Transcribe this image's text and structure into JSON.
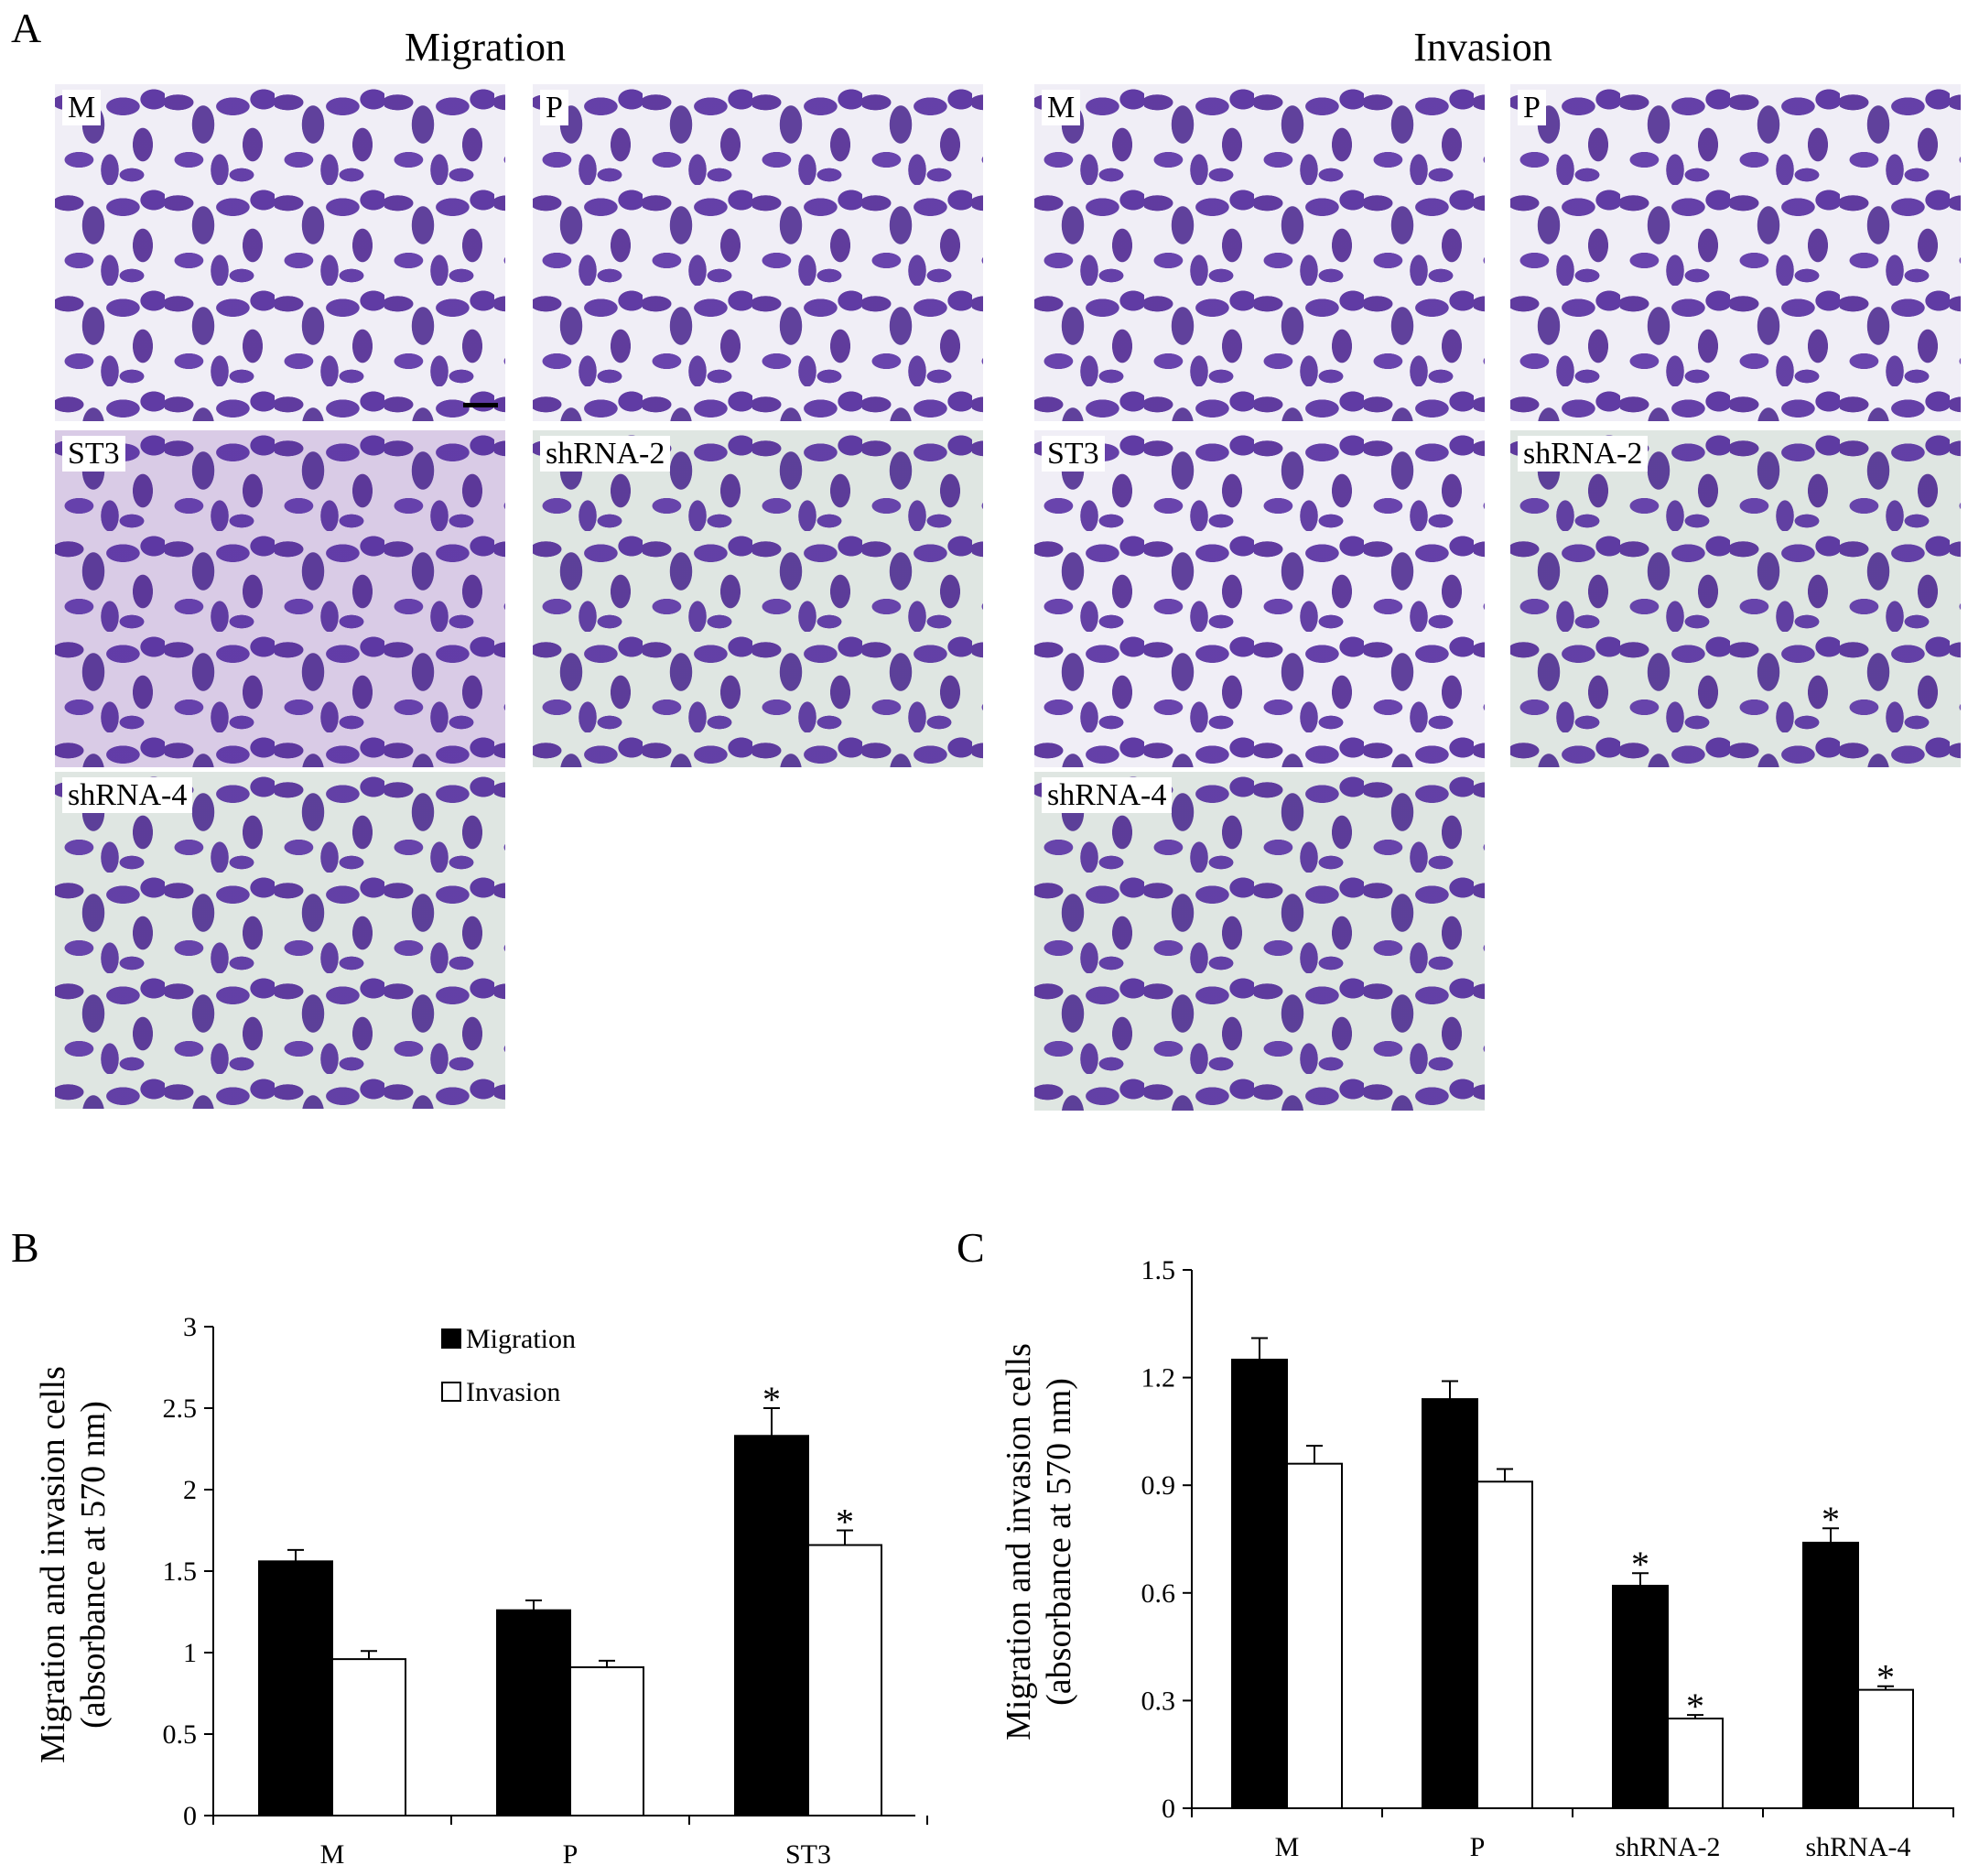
{
  "panel_a": {
    "letter": "A",
    "migration_title": "Migration",
    "invasion_title": "Invasion",
    "migration_images": [
      {
        "label": "M",
        "tone": "light"
      },
      {
        "label": "P",
        "tone": "light"
      },
      {
        "label": "ST3",
        "tone": "dense"
      },
      {
        "label": "shRNA-2",
        "tone": "pale"
      },
      {
        "label": "shRNA-4",
        "tone": "pale"
      }
    ],
    "invasion_images": [
      {
        "label": "M",
        "tone": "light"
      },
      {
        "label": "P",
        "tone": "light"
      },
      {
        "label": "ST3",
        "tone": "light"
      },
      {
        "label": "shRNA-2",
        "tone": "pale"
      },
      {
        "label": "shRNA-4",
        "tone": "pale"
      }
    ]
  },
  "chart_data": [
    {
      "panel": "B",
      "type": "bar",
      "ylabel_line1": "Migration and invasion cells",
      "ylabel_line2": "(absorbance at 570 nm)",
      "categories": [
        "M",
        "P",
        "ST3"
      ],
      "ylim": [
        0,
        3
      ],
      "yticks": [
        "0",
        "0.5",
        "1",
        "1.5",
        "2",
        "2.5",
        "3"
      ],
      "ytick_values": [
        0,
        0.5,
        1,
        1.5,
        2,
        2.5,
        3
      ],
      "series": [
        {
          "name": "Migration",
          "color": "#000000",
          "values": [
            1.56,
            1.26,
            2.33
          ],
          "errors": [
            0.07,
            0.06,
            0.17
          ],
          "sig": [
            "",
            "",
            "*"
          ]
        },
        {
          "name": "Invasion",
          "color": "#ffffff",
          "values": [
            0.96,
            0.91,
            1.66
          ],
          "errors": [
            0.05,
            0.04,
            0.09
          ],
          "sig": [
            "",
            "",
            "*"
          ]
        }
      ],
      "legend": "inside-top-center"
    },
    {
      "panel": "C",
      "type": "bar",
      "ylabel_line1": "Migration and invasion cells",
      "ylabel_line2": "(absorbance at 570 nm)",
      "categories": [
        "M",
        "P",
        "shRNA-2",
        "shRNA-4"
      ],
      "ylim": [
        0,
        1.5
      ],
      "yticks": [
        "0",
        "0.3",
        "0.6",
        "0.9",
        "1.2",
        "1.5"
      ],
      "ytick_values": [
        0,
        0.3,
        0.6,
        0.9,
        1.2,
        1.5
      ],
      "series": [
        {
          "name": "Migration",
          "color": "#000000",
          "values": [
            1.25,
            1.14,
            0.62,
            0.74
          ],
          "errors": [
            0.06,
            0.05,
            0.035,
            0.04
          ],
          "sig": [
            "",
            "",
            "*",
            "*"
          ]
        },
        {
          "name": "Invasion",
          "color": "#ffffff",
          "values": [
            0.96,
            0.91,
            0.25,
            0.33
          ],
          "errors": [
            0.05,
            0.035,
            0.01,
            0.01
          ],
          "sig": [
            "",
            "",
            "*",
            "*"
          ]
        }
      ]
    }
  ]
}
